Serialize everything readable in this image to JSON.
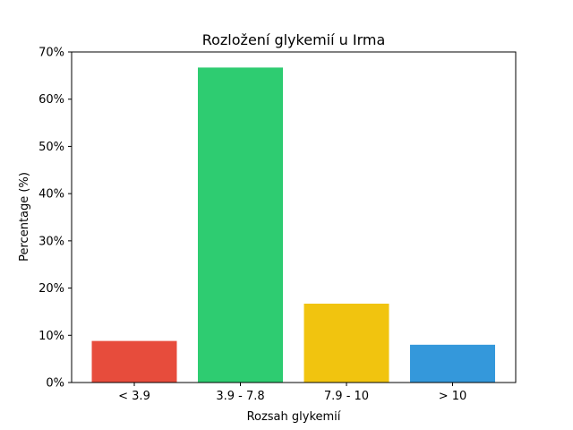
{
  "chart_data": {
    "type": "bar",
    "title": "Rozložení glykemií u  Irma",
    "xlabel": "Rozsah glykemií",
    "ylabel": "Percentage (%)",
    "categories": [
      "< 3.9",
      "3.9 - 7.8",
      "7.9 - 10",
      "> 10"
    ],
    "values": [
      8.8,
      66.7,
      16.7,
      8.0
    ],
    "colors": [
      "#e74c3c",
      "#2ecc71",
      "#f1c40f",
      "#3498db"
    ],
    "ylim": [
      0,
      70
    ],
    "yticks": [
      0,
      10,
      20,
      30,
      40,
      50,
      60,
      70
    ],
    "ytick_labels": [
      "0%",
      "10%",
      "20%",
      "30%",
      "40%",
      "50%",
      "60%",
      "70%"
    ],
    "grid": false,
    "legend": "none"
  }
}
